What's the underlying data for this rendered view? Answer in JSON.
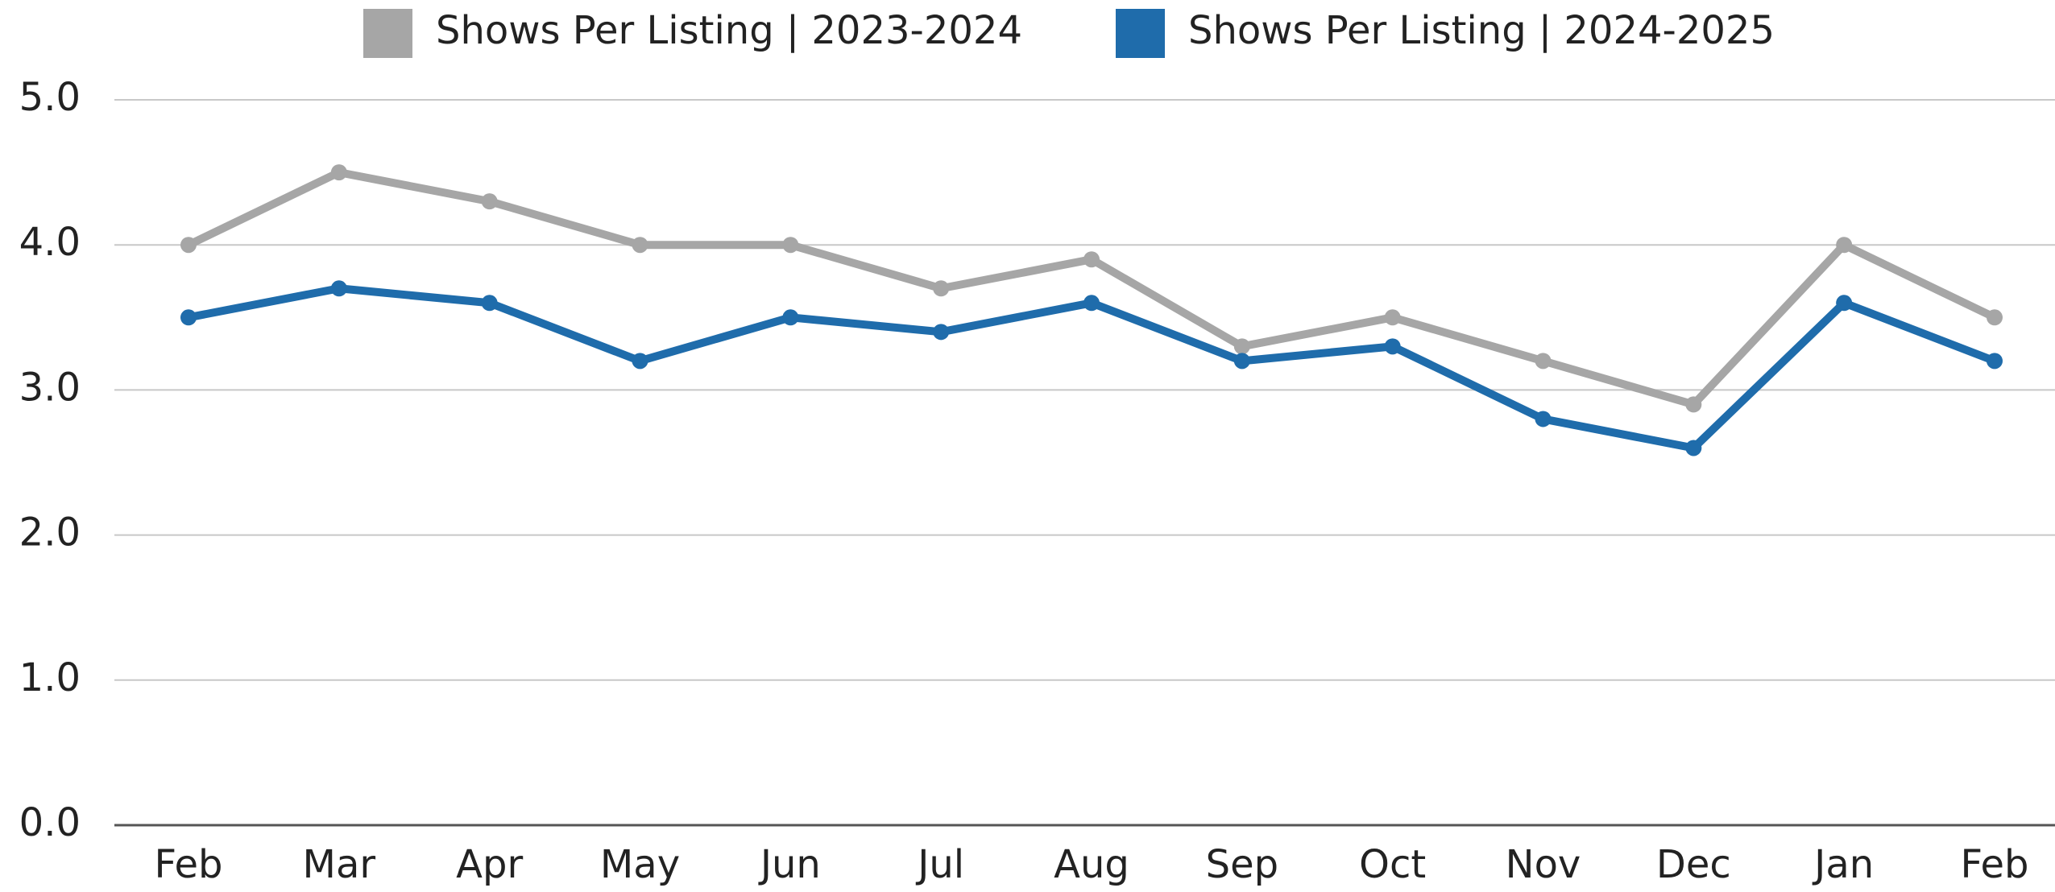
{
  "chart_data": {
    "type": "line",
    "categories": [
      "Feb",
      "Mar",
      "Apr",
      "May",
      "Jun",
      "Jul",
      "Aug",
      "Sep",
      "Oct",
      "Nov",
      "Dec",
      "Jan",
      "Feb"
    ],
    "series": [
      {
        "name": "Shows Per Listing | 2023-2024",
        "color": "#a6a6a6",
        "values": [
          4.0,
          4.5,
          4.3,
          4.0,
          4.0,
          3.7,
          3.9,
          3.3,
          3.5,
          3.2,
          2.9,
          4.0,
          3.5
        ]
      },
      {
        "name": "Shows Per Listing | 2024-2025",
        "color": "#1f6cab",
        "values": [
          3.5,
          3.7,
          3.6,
          3.2,
          3.5,
          3.4,
          3.6,
          3.2,
          3.3,
          2.8,
          2.6,
          3.6,
          3.2
        ]
      }
    ],
    "ylim": [
      0,
      5
    ],
    "yticks": [
      {
        "value": 0,
        "label": "0.0"
      },
      {
        "value": 1,
        "label": "1.0"
      },
      {
        "value": 2,
        "label": "2.0"
      },
      {
        "value": 3,
        "label": "3.0"
      },
      {
        "value": 4,
        "label": "4.0"
      },
      {
        "value": 5,
        "label": "5.0"
      }
    ],
    "grid": true,
    "legend": "top"
  }
}
